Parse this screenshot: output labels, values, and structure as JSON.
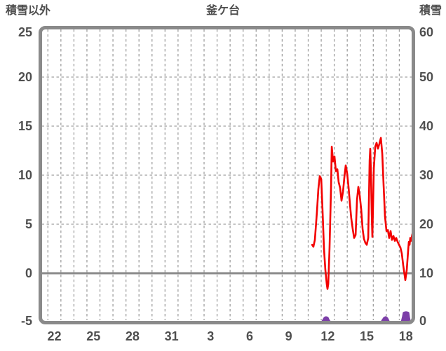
{
  "header": {
    "left_axis_title": "積雪以外",
    "station_title": "釜ケ台",
    "right_axis_title": "積雪"
  },
  "colors": {
    "temperature_line": "#f30000",
    "snow_line": "#7c3fa8",
    "frame": "#8a8a8a",
    "grid": "#a0a0a0",
    "zero_line": "#8a8a8a",
    "text": "#4f4f4f",
    "background": "#ffffff"
  },
  "chart_data": {
    "type": "line",
    "title": "釜ケ台",
    "left_axis": {
      "title": "積雪以外",
      "min": -5,
      "max": 25,
      "ticks": [
        25,
        20,
        15,
        10,
        5,
        0,
        -5
      ]
    },
    "right_axis": {
      "title": "積雪",
      "min": 0,
      "max": 60,
      "ticks": [
        60,
        50,
        40,
        30,
        20,
        10,
        0
      ]
    },
    "x_axis": {
      "labels": [
        "22",
        "25",
        "28",
        "31",
        "3",
        "6",
        "9",
        "12",
        "15",
        "18"
      ],
      "label_days": [
        1,
        4,
        7,
        10,
        13,
        16,
        19,
        22,
        25,
        28
      ],
      "domain_days": 28.5,
      "gridline_count": 28,
      "grid_dashed": true
    },
    "zero_line_value": 0,
    "legend": "none",
    "series": [
      {
        "name": "積雪以外",
        "axis": "left",
        "color": "#f30000",
        "points": [
          [
            20.8,
            2.9
          ],
          [
            20.9,
            2.7
          ],
          [
            21.01,
            3.4
          ],
          [
            21.17,
            6.2
          ],
          [
            21.28,
            8.6
          ],
          [
            21.39,
            9.9
          ],
          [
            21.5,
            9.6
          ],
          [
            21.6,
            6.5
          ],
          [
            21.71,
            2.5
          ],
          [
            21.82,
            0.3
          ],
          [
            21.93,
            -1.2
          ],
          [
            21.98,
            -1.6
          ],
          [
            22.04,
            -1.1
          ],
          [
            22.14,
            2.5
          ],
          [
            22.25,
            8.5
          ],
          [
            22.31,
            12.9
          ],
          [
            22.41,
            11.4
          ],
          [
            22.52,
            11.9
          ],
          [
            22.63,
            10.4
          ],
          [
            22.74,
            10.6
          ],
          [
            22.84,
            9.3
          ],
          [
            22.95,
            8.7
          ],
          [
            23.06,
            7.4
          ],
          [
            23.17,
            8.3
          ],
          [
            23.28,
            9.8
          ],
          [
            23.38,
            11.0
          ],
          [
            23.49,
            10.2
          ],
          [
            23.6,
            8.8
          ],
          [
            23.71,
            7.0
          ],
          [
            23.81,
            5.6
          ],
          [
            23.92,
            4.5
          ],
          [
            24.03,
            3.6
          ],
          [
            24.14,
            3.9
          ],
          [
            24.25,
            7.5
          ],
          [
            24.35,
            8.8
          ],
          [
            24.46,
            7.9
          ],
          [
            24.57,
            6.5
          ],
          [
            24.68,
            4.5
          ],
          [
            24.78,
            3.5
          ],
          [
            24.89,
            3.1
          ],
          [
            25.0,
            2.9
          ],
          [
            25.11,
            3.6
          ],
          [
            25.22,
            11.5
          ],
          [
            25.27,
            12.7
          ],
          [
            25.32,
            10.2
          ],
          [
            25.38,
            6.0
          ],
          [
            25.43,
            3.7
          ],
          [
            25.54,
            10.7
          ],
          [
            25.65,
            12.9
          ],
          [
            25.75,
            13.3
          ],
          [
            25.86,
            12.7
          ],
          [
            25.97,
            13.2
          ],
          [
            26.08,
            13.8
          ],
          [
            26.19,
            12.2
          ],
          [
            26.29,
            9.0
          ],
          [
            26.4,
            5.8
          ],
          [
            26.51,
            4.3
          ],
          [
            26.62,
            4.4
          ],
          [
            26.72,
            3.6
          ],
          [
            26.83,
            4.3
          ],
          [
            26.94,
            3.4
          ],
          [
            27.05,
            3.8
          ],
          [
            27.16,
            3.3
          ],
          [
            27.26,
            3.6
          ],
          [
            27.37,
            3.2
          ],
          [
            27.48,
            2.9
          ],
          [
            27.59,
            2.6
          ],
          [
            27.69,
            2.0
          ],
          [
            27.8,
            0.8
          ],
          [
            27.91,
            -0.2
          ],
          [
            27.96,
            -0.7
          ],
          [
            28.07,
            0.3
          ],
          [
            28.18,
            2.4
          ],
          [
            28.23,
            3.2
          ],
          [
            28.29,
            2.9
          ],
          [
            28.34,
            3.6
          ],
          [
            28.4,
            3.3
          ],
          [
            28.5,
            4.0
          ]
        ]
      },
      {
        "name": "積雪",
        "axis": "right",
        "color": "#7c3fa8",
        "fill": true,
        "segments": [
          [
            [
              20.96,
              0
            ],
            [
              21.55,
              0
            ],
            [
              21.66,
              0.4
            ],
            [
              21.77,
              0.9
            ],
            [
              21.87,
              1.0
            ],
            [
              21.98,
              0.9
            ],
            [
              22.09,
              0.3
            ],
            [
              22.2,
              0
            ],
            [
              25.38,
              0
            ]
          ],
          [
            [
              25.75,
              0
            ],
            [
              26.13,
              0
            ],
            [
              26.24,
              0.5
            ],
            [
              26.35,
              0.9
            ],
            [
              26.45,
              1.0
            ],
            [
              26.56,
              0.8
            ],
            [
              26.67,
              0.2
            ],
            [
              26.72,
              0
            ],
            [
              27.69,
              0
            ],
            [
              27.8,
              1.2
            ],
            [
              27.85,
              1.9
            ],
            [
              27.96,
              2.0
            ],
            [
              28.07,
              2.0
            ],
            [
              28.18,
              1.9
            ],
            [
              28.23,
              1.0
            ],
            [
              28.29,
              0.2
            ],
            [
              28.34,
              0
            ],
            [
              28.5,
              0
            ]
          ]
        ]
      }
    ]
  }
}
